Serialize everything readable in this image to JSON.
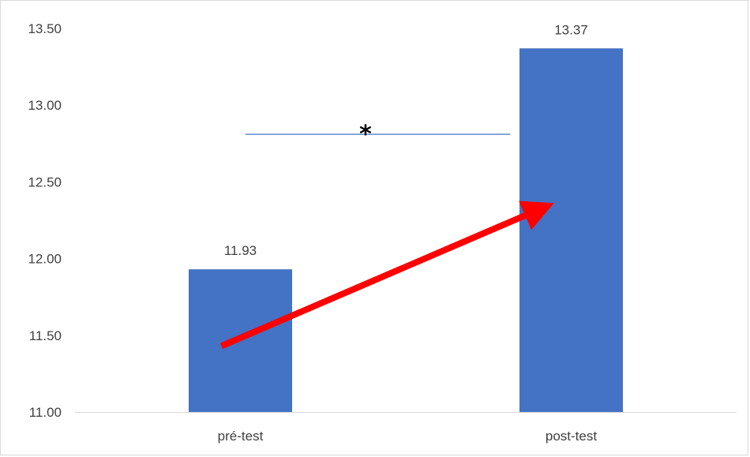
{
  "chart_data": {
    "type": "bar",
    "categories": [
      "pré-test",
      "post-test"
    ],
    "values": [
      11.93,
      13.37
    ],
    "data_labels": [
      "11.93",
      "13.37"
    ],
    "ylim": [
      11.0,
      13.5
    ],
    "y_ticks": [
      "11.00",
      "11.50",
      "12.00",
      "12.50",
      "13.00",
      "13.50"
    ],
    "y_tick_values": [
      11.0,
      11.5,
      12.0,
      12.5,
      13.0,
      13.5
    ],
    "grid": false,
    "bar_color": "#4472C4",
    "annotations": {
      "significance_marker": "*",
      "significance_line_y": 12.81,
      "significance_line_color": "#4472C4",
      "arrow_color": "#FF0000",
      "arrow_from": {
        "category": "pré-test",
        "y": 11.43
      },
      "arrow_to": {
        "category": "post-test",
        "y": 12.37
      }
    }
  }
}
